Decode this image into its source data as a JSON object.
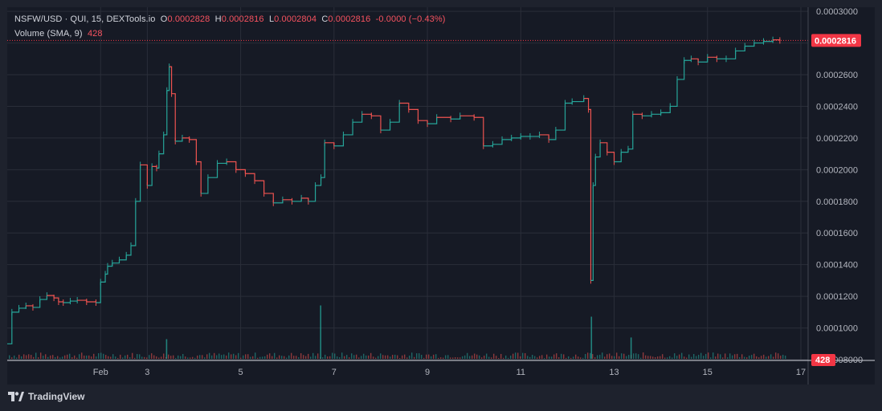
{
  "legend": {
    "symbol": "NSFW/USD · QUI, 15, DEXTools.io",
    "o_label": "O",
    "o_value": "0.0002828",
    "h_label": "H",
    "h_value": "0.0002816",
    "l_label": "L",
    "l_value": "0.0002804",
    "c_label": "C",
    "c_value": "0.0002816",
    "change": "-0.0000 (−0.43%)",
    "volume_label": "Volume (SMA, 9)",
    "volume_value": "428"
  },
  "brand": {
    "name": "TradingView"
  },
  "colors": {
    "up": "#26a69a",
    "down": "#ef5350",
    "price_tag": "#f23645",
    "grid": "#2a2e39",
    "text": "#b2b5be"
  },
  "chart_data": {
    "type": "line",
    "title": "",
    "xlabel": "",
    "ylabel": "",
    "x_unit": "date (Feb)",
    "x_ticks": [
      {
        "x": 2,
        "label": "Feb"
      },
      {
        "x": 3,
        "label": "3"
      },
      {
        "x": 5,
        "label": "5"
      },
      {
        "x": 7,
        "label": "7"
      },
      {
        "x": 9,
        "label": "9"
      },
      {
        "x": 11,
        "label": "11"
      },
      {
        "x": 13,
        "label": "13"
      },
      {
        "x": 15,
        "label": "15"
      },
      {
        "x": 17,
        "label": "17"
      }
    ],
    "xlim": [
      0.0,
      17.0
    ],
    "y_ticks": [
      "0.0003000",
      "0.0002800",
      "0.0002600",
      "0.0002400",
      "0.0002200",
      "0.0002000",
      "0.0001800",
      "0.0001600",
      "0.0001400",
      "0.0001200",
      "0.0001000",
      "0.00008000"
    ],
    "ylim": [
      7.95e-05,
      0.0003026
    ],
    "last_price": 0.0002816,
    "last_price_label": "0.0002816",
    "volume_last_label": "428",
    "grid": true,
    "series": [
      {
        "name": "NSFW/USD",
        "x": [
          0.0,
          0.1,
          0.25,
          0.4,
          0.55,
          0.7,
          0.85,
          1.0,
          1.1,
          1.2,
          1.35,
          1.5,
          1.7,
          1.9,
          2.0,
          2.1,
          2.15,
          2.25,
          2.4,
          2.55,
          2.65,
          2.75,
          2.85,
          3.0,
          3.1,
          3.2,
          3.25,
          3.35,
          3.42,
          3.47,
          3.52,
          3.6,
          3.75,
          3.9,
          4.05,
          4.15,
          4.3,
          4.5,
          4.7,
          4.9,
          5.1,
          5.3,
          5.5,
          5.7,
          5.9,
          6.1,
          6.3,
          6.45,
          6.6,
          6.72,
          6.8,
          7.0,
          7.2,
          7.4,
          7.6,
          7.8,
          8.0,
          8.2,
          8.4,
          8.6,
          8.8,
          9.0,
          9.2,
          9.5,
          9.7,
          10.0,
          10.2,
          10.4,
          10.6,
          10.8,
          11.0,
          11.2,
          11.4,
          11.6,
          11.75,
          11.95,
          12.1,
          12.35,
          12.45,
          12.5,
          12.55,
          12.6,
          12.7,
          12.85,
          13.0,
          13.15,
          13.3,
          13.4,
          13.6,
          13.8,
          14.0,
          14.2,
          14.35,
          14.5,
          14.65,
          14.8,
          15.0,
          15.2,
          15.4,
          15.6,
          15.8,
          16.0,
          16.2,
          16.4,
          16.55
        ],
        "values": [
          9e-05,
          0.00011,
          0.0001125,
          0.000114,
          0.000113,
          0.000118,
          0.0001205,
          0.000119,
          0.0001165,
          0.000116,
          0.000117,
          0.0001175,
          0.0001165,
          0.000116,
          0.000129,
          0.000134,
          0.000139,
          0.000141,
          0.000143,
          0.000146,
          0.000152,
          0.00018,
          0.000203,
          0.00019,
          0.000202,
          0.000201,
          0.00021,
          0.000222,
          0.00025,
          0.000265,
          0.000248,
          0.000218,
          0.00022,
          0.000219,
          0.000205,
          0.000185,
          0.000195,
          0.000204,
          0.000205,
          0.0002,
          0.0001975,
          0.000193,
          0.000185,
          0.000179,
          0.000181,
          0.00018,
          0.000182,
          0.00018,
          0.00019,
          0.000195,
          0.000217,
          0.000215,
          0.000222,
          0.00023,
          0.000235,
          0.000234,
          0.000225,
          0.00023,
          0.000242,
          0.000238,
          0.000231,
          0.000229,
          0.000233,
          0.000232,
          0.000234,
          0.000233,
          0.000215,
          0.000216,
          0.000219,
          0.00022,
          0.000221,
          0.000221,
          0.000222,
          0.000219,
          0.000225,
          0.000242,
          0.000243,
          0.000245,
          0.000238,
          0.00013,
          0.00019,
          0.000208,
          0.000217,
          0.000211,
          0.000205,
          0.000211,
          0.000213,
          0.000235,
          0.000234,
          0.000235,
          0.000236,
          0.00024,
          0.000257,
          0.000269,
          0.00027,
          0.000268,
          0.000271,
          0.00027,
          0.00027,
          0.000275,
          0.000278,
          0.00028,
          0.000281,
          0.000282,
          0.0002816
        ]
      }
    ],
    "volume_spikes": [
      {
        "x": 3.4,
        "value": 0.35
      },
      {
        "x": 6.7,
        "value": 0.95
      },
      {
        "x": 12.5,
        "value": 0.75
      },
      {
        "x": 13.35,
        "value": 0.38
      }
    ]
  }
}
